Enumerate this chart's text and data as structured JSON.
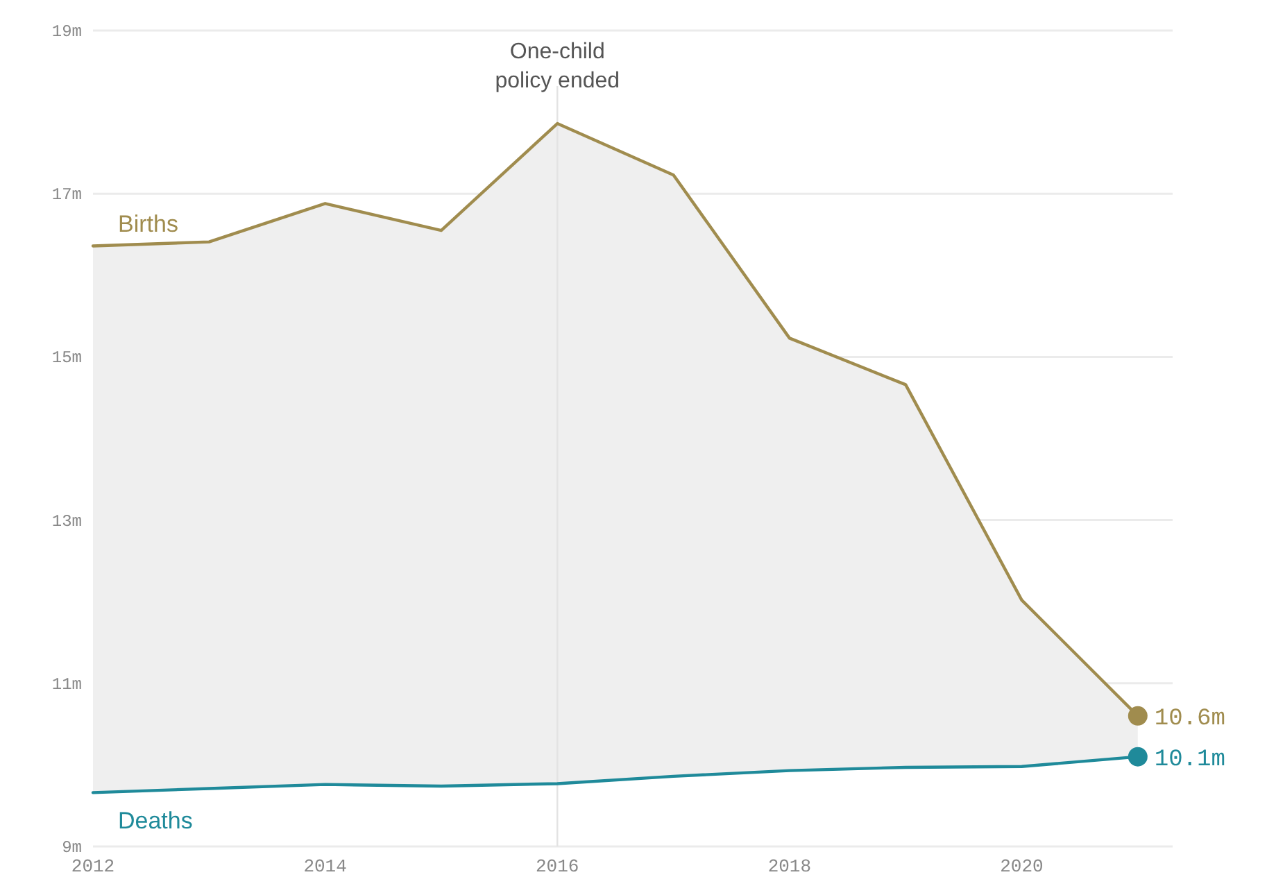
{
  "chart_data": {
    "type": "line",
    "x": [
      2012,
      2013,
      2014,
      2015,
      2016,
      2017,
      2018,
      2019,
      2020,
      2021
    ],
    "series": [
      {
        "name": "Births",
        "type": "area",
        "color": "#a08c4e",
        "values": [
          16.36,
          16.41,
          16.88,
          16.55,
          17.86,
          17.23,
          15.23,
          14.66,
          12.02,
          10.6
        ],
        "value_labels": [
          null,
          null,
          null,
          null,
          null,
          null,
          null,
          null,
          null,
          "10.6m"
        ]
      },
      {
        "name": "Deaths",
        "color": "#1f8a9a",
        "values": [
          9.66,
          9.71,
          9.76,
          9.74,
          9.77,
          9.86,
          9.93,
          9.97,
          9.98,
          10.1
        ],
        "value_labels": [
          null,
          null,
          null,
          null,
          null,
          null,
          null,
          null,
          null,
          "10.1m"
        ]
      }
    ],
    "xlim": [
      2012,
      2021.3
    ],
    "xticks": [
      2012,
      2014,
      2016,
      2018,
      2020
    ],
    "ylim": [
      9,
      19
    ],
    "yticks": [
      {
        "value": 9,
        "label": "9m"
      },
      {
        "value": 11,
        "label": "11m"
      },
      {
        "value": 13,
        "label": "13m"
      },
      {
        "value": 15,
        "label": "15m"
      },
      {
        "value": 17,
        "label": "17m"
      },
      {
        "value": 19,
        "label": "19m"
      }
    ],
    "grid": "y",
    "ref_lines": [
      {
        "axis": "x",
        "value": 2016,
        "label": "One-child policy ended",
        "color": "#e3e3e3"
      }
    ]
  }
}
